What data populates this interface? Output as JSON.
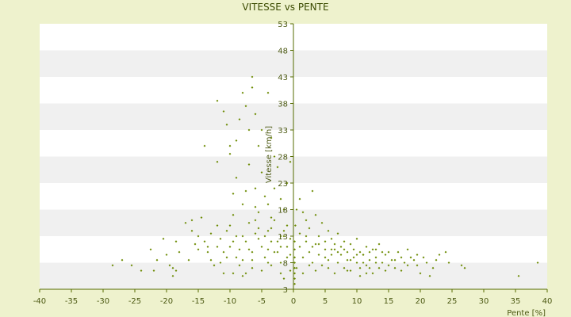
{
  "chart_data": {
    "type": "scatter",
    "title": "VITESSE vs PENTE",
    "xlabel": "Pente [%]",
    "ylabel": "Vitesse [km/h]",
    "xlim": [
      -40,
      40
    ],
    "ylim": [
      3,
      53
    ],
    "xticks": [
      -40,
      -35,
      -30,
      -25,
      -20,
      -15,
      -10,
      -5,
      0,
      5,
      10,
      15,
      20,
      25,
      30,
      35,
      40
    ],
    "yticks": [
      3,
      8,
      13,
      18,
      23,
      28,
      33,
      38,
      43,
      48,
      53
    ],
    "grid": "horizontal alternating bands",
    "colors": {
      "background": "#eef2cd",
      "band_light": "#ffffff",
      "band_dark": "#f0f0f0",
      "marker": "#6b8a00",
      "axis": "#556b00"
    },
    "series": [
      {
        "points": [
          [
            -28.5,
            7.5
          ],
          [
            -27,
            8.5
          ],
          [
            -24,
            6.5
          ],
          [
            -22.5,
            10.5
          ],
          [
            -21.5,
            8.5
          ],
          [
            -20.5,
            12.5
          ],
          [
            -20,
            9.5
          ],
          [
            -19.5,
            7.5
          ],
          [
            -19,
            7
          ],
          [
            -18.5,
            12
          ],
          [
            -18,
            10
          ],
          [
            -16.5,
            8.5
          ],
          [
            -16,
            14
          ],
          [
            -15.5,
            11.5
          ],
          [
            -15,
            13
          ],
          [
            -14.5,
            16.5
          ],
          [
            -14,
            12
          ],
          [
            -13.5,
            10
          ],
          [
            -13,
            8.5
          ],
          [
            -12.5,
            7.5
          ],
          [
            -12,
            15
          ],
          [
            -11.5,
            12.5
          ],
          [
            -11,
            10
          ],
          [
            -10.5,
            14
          ],
          [
            -10,
            11
          ],
          [
            -9.5,
            17
          ],
          [
            -9,
            13
          ],
          [
            -8.5,
            10.5
          ],
          [
            -8,
            8.5
          ],
          [
            -7.5,
            12
          ],
          [
            -7,
            15.5
          ],
          [
            -6.5,
            10
          ],
          [
            -6,
            13.5
          ],
          [
            -5.5,
            17.5
          ],
          [
            -5,
            11
          ],
          [
            -4.5,
            9
          ],
          [
            -4,
            14
          ],
          [
            -3.5,
            12
          ],
          [
            -3,
            16
          ],
          [
            -2.5,
            10
          ],
          [
            -2,
            8
          ],
          [
            -1.5,
            13
          ],
          [
            -1,
            11
          ],
          [
            -0.5,
            9.5
          ],
          [
            -15,
            10.5
          ],
          [
            -13,
            13.5
          ],
          [
            -14,
            30
          ],
          [
            -12,
            38.5
          ],
          [
            -11,
            36.5
          ],
          [
            -10.5,
            34
          ],
          [
            -10,
            28.5
          ],
          [
            -9,
            31
          ],
          [
            -8.5,
            35
          ],
          [
            -8,
            40
          ],
          [
            -7.5,
            37.5
          ],
          [
            -7,
            33
          ],
          [
            -6.5,
            43
          ],
          [
            -6.5,
            41
          ],
          [
            -6,
            36
          ],
          [
            -5.5,
            30
          ],
          [
            -5,
            33
          ],
          [
            -4,
            40
          ],
          [
            -3.5,
            31.5
          ],
          [
            -3,
            28
          ],
          [
            -12,
            27
          ],
          [
            -10,
            30
          ],
          [
            -9,
            24
          ],
          [
            -7,
            26.5
          ],
          [
            -6,
            22
          ],
          [
            -5,
            25
          ],
          [
            -4,
            19
          ],
          [
            -3,
            22
          ],
          [
            -2.5,
            26
          ],
          [
            -2,
            20
          ],
          [
            -1.5,
            18
          ],
          [
            -1,
            23
          ],
          [
            -0.5,
            27
          ],
          [
            -1,
            15
          ],
          [
            -2,
            13
          ],
          [
            -4.5,
            20.5
          ],
          [
            -8,
            19
          ],
          [
            -9.5,
            21
          ],
          [
            -6,
            18.5
          ],
          [
            -7.5,
            21.5
          ],
          [
            -3.5,
            16.5
          ],
          [
            -5.5,
            14.5
          ],
          [
            -11,
            6
          ],
          [
            -9.5,
            6
          ],
          [
            -8,
            5.5
          ],
          [
            -6.5,
            7
          ],
          [
            -5,
            6.5
          ],
          [
            -3.5,
            7.5
          ],
          [
            -2,
            6
          ],
          [
            -10.5,
            9
          ],
          [
            0.2,
            4
          ],
          [
            0.2,
            5
          ],
          [
            0.2,
            6
          ],
          [
            0.2,
            7
          ],
          [
            0.2,
            8
          ],
          [
            0.2,
            9
          ],
          [
            0.2,
            10.5
          ],
          [
            0.2,
            12
          ],
          [
            0.3,
            15
          ],
          [
            0.5,
            18
          ],
          [
            1,
            20
          ],
          [
            1.5,
            17.5
          ],
          [
            2,
            16
          ],
          [
            2.5,
            14.5
          ],
          [
            3,
            21.5
          ],
          [
            3.5,
            17
          ],
          [
            4,
            13
          ],
          [
            4.5,
            15.5
          ],
          [
            5,
            12
          ],
          [
            5.5,
            14
          ],
          [
            6,
            12.5
          ],
          [
            6.5,
            10.5
          ],
          [
            7,
            13.5
          ],
          [
            7.5,
            11
          ],
          [
            8,
            12
          ],
          [
            8.5,
            10
          ],
          [
            9,
            11.5
          ],
          [
            9.5,
            9
          ],
          [
            10,
            12.5
          ],
          [
            10.5,
            10
          ],
          [
            11,
            9.5
          ],
          [
            11.5,
            11
          ],
          [
            12,
            8.5
          ],
          [
            12.5,
            10.5
          ],
          [
            13,
            9
          ],
          [
            13.5,
            11.5
          ],
          [
            14,
            8
          ],
          [
            14.5,
            9.5
          ],
          [
            15,
            10
          ],
          [
            15.5,
            8.5
          ],
          [
            16,
            7
          ],
          [
            17,
            9
          ],
          [
            18,
            7.5
          ],
          [
            19,
            8.5
          ],
          [
            19.5,
            9.5
          ],
          [
            20,
            6
          ],
          [
            21,
            8
          ],
          [
            22,
            7
          ],
          [
            23,
            9.5
          ],
          [
            24,
            10
          ],
          [
            24.5,
            8
          ],
          [
            26.5,
            7.5
          ],
          [
            35.5,
            5.5
          ],
          [
            38.5,
            8
          ],
          [
            1,
            11
          ],
          [
            1.5,
            9
          ],
          [
            2,
            12
          ],
          [
            2.5,
            10
          ],
          [
            3,
            8
          ],
          [
            3.5,
            11.5
          ],
          [
            4,
            9.5
          ],
          [
            4.5,
            7.5
          ],
          [
            5,
            10.5
          ],
          [
            5.5,
            8.5
          ],
          [
            6,
            9.5
          ],
          [
            6.5,
            11.5
          ],
          [
            7,
            8
          ],
          [
            7.5,
            9.5
          ],
          [
            8,
            7
          ],
          [
            8.5,
            8.5
          ],
          [
            9,
            6.5
          ],
          [
            9.5,
            10.5
          ],
          [
            10,
            8
          ],
          [
            10.5,
            7
          ],
          [
            11,
            9.5
          ],
          [
            11.5,
            7.5
          ],
          [
            12,
            10
          ],
          [
            12.5,
            6
          ],
          [
            13,
            8
          ],
          [
            13.5,
            7
          ],
          [
            14,
            10
          ],
          [
            14.5,
            6.5
          ],
          [
            16.5,
            10
          ],
          [
            17.5,
            8
          ],
          [
            18.5,
            9
          ],
          [
            20.5,
            9
          ],
          [
            21.5,
            5.5
          ],
          [
            1,
            13.5
          ],
          [
            2,
            13
          ],
          [
            3,
            11
          ],
          [
            4,
            11.5
          ],
          [
            5,
            9
          ],
          [
            6,
            10.5
          ],
          [
            7,
            10
          ],
          [
            8,
            10.5
          ],
          [
            9,
            8.5
          ],
          [
            10,
            9.5
          ],
          [
            11,
            8
          ],
          [
            12,
            7
          ],
          [
            13,
            10.5
          ],
          [
            15,
            7.5
          ],
          [
            16,
            8.5
          ],
          [
            17,
            6.5
          ],
          [
            18,
            10.5
          ],
          [
            19.5,
            7.5
          ],
          [
            22.5,
            8.5
          ],
          [
            27,
            7
          ],
          [
            0.5,
            7
          ],
          [
            1.5,
            6
          ],
          [
            2.5,
            7.5
          ],
          [
            3.5,
            6.5
          ],
          [
            5.5,
            7
          ],
          [
            6.5,
            6
          ],
          [
            8.5,
            6.5
          ],
          [
            10.5,
            5.5
          ],
          [
            11.5,
            6
          ],
          [
            -1.5,
            5
          ],
          [
            -0.5,
            6.5
          ],
          [
            -12,
            11
          ],
          [
            -11.5,
            8
          ],
          [
            -13.5,
            11
          ],
          [
            -16,
            16
          ],
          [
            -17,
            15.5
          ],
          [
            -18.5,
            6.5
          ],
          [
            -19,
            5.5
          ],
          [
            -22,
            6.5
          ],
          [
            -25.5,
            7.5
          ],
          [
            -4,
            10.5
          ],
          [
            -2.5,
            12
          ],
          [
            -1,
            9
          ],
          [
            -6.5,
            8.5
          ],
          [
            -7.5,
            6
          ],
          [
            -8.5,
            7.5
          ],
          [
            -9,
            9
          ],
          [
            -4.5,
            13
          ],
          [
            -3,
            10
          ],
          [
            -5.5,
            12.5
          ],
          [
            -7,
            10.5
          ],
          [
            -8,
            13
          ],
          [
            -9.5,
            12
          ],
          [
            -10,
            15
          ],
          [
            -6,
            16
          ],
          [
            -4,
            8
          ],
          [
            -2,
            11
          ],
          [
            -0.5,
            12.5
          ],
          [
            -1.5,
            14
          ],
          [
            -3.5,
            14.5
          ]
        ]
      }
    ]
  }
}
